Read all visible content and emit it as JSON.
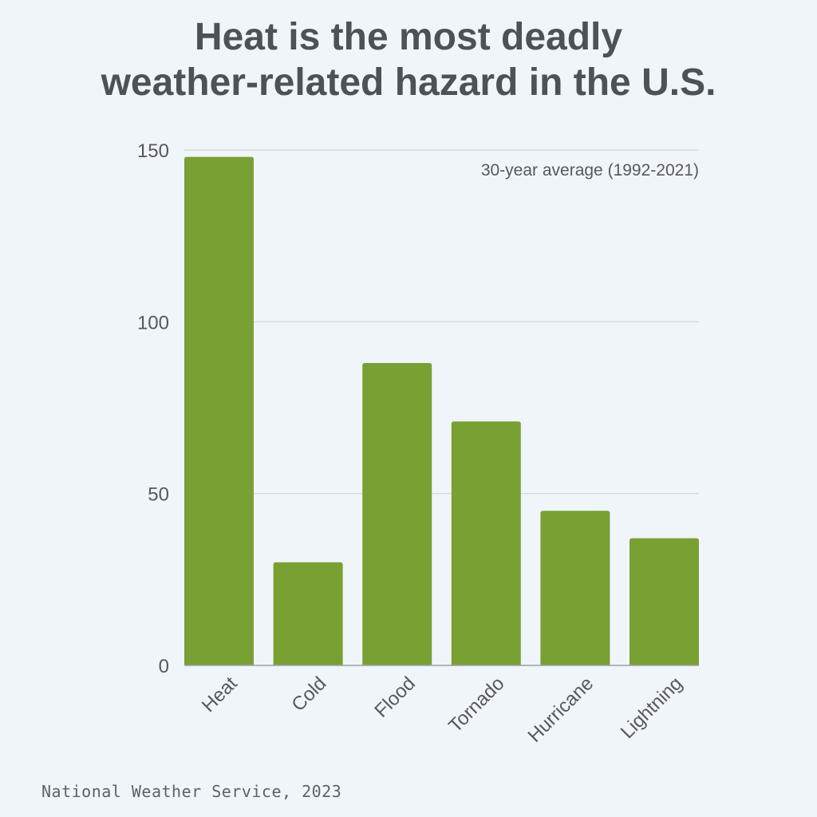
{
  "chart_data": {
    "type": "bar",
    "title": [
      "Heat is the most deadly",
      "weather-related hazard in the U.S."
    ],
    "annotation": "30-year average (1992-2021)",
    "categories": [
      "Heat",
      "Cold",
      "Flood",
      "Tornado",
      "Hurricane",
      "Lightning"
    ],
    "values": [
      148,
      30,
      88,
      71,
      45,
      37
    ],
    "ylim": [
      0,
      150
    ],
    "yticks": [
      "0",
      "50",
      "100",
      "150"
    ],
    "xlabel": "",
    "ylabel": "",
    "grid": true,
    "bar_color": "#78a033",
    "grid_color": "#cfd6dd",
    "axis_color": "#9aa2a9",
    "text_color": "#55595d"
  },
  "source": "National Weather Service, 2023"
}
